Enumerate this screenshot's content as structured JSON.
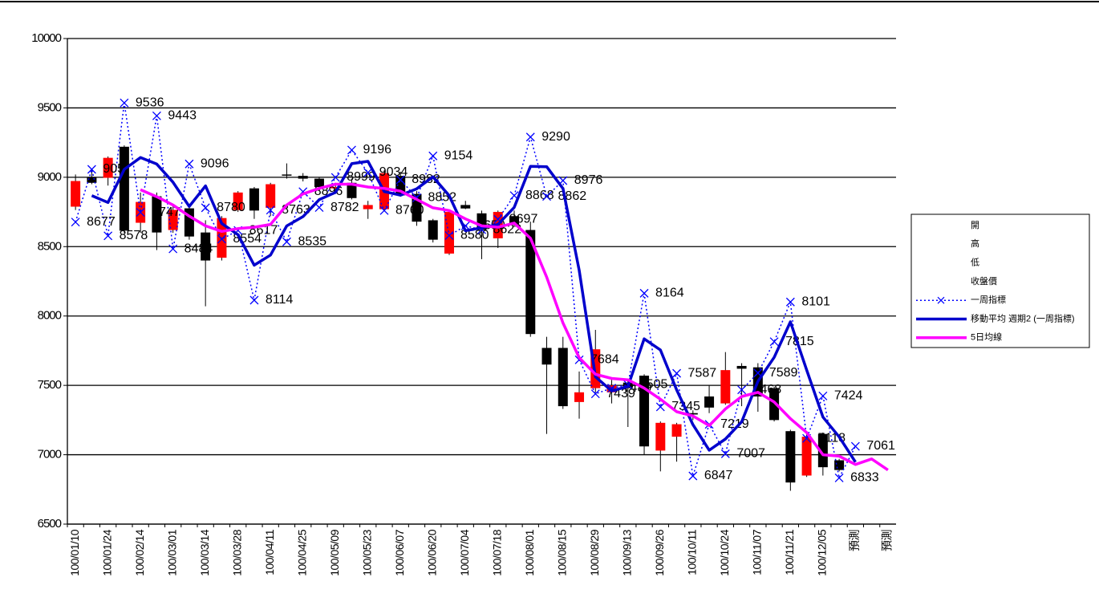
{
  "chart_data": {
    "type": "candlestick",
    "categories": [
      "100/01/10",
      null,
      "100/01/24",
      null,
      "100/02/14",
      null,
      "100/03/01",
      null,
      "100/03/14",
      null,
      "100/03/28",
      null,
      "100/04/11",
      null,
      "100/04/25",
      null,
      "100/05/09",
      null,
      "100/05/23",
      null,
      "100/06/07",
      null,
      "100/06/20",
      null,
      "100/07/04",
      null,
      "100/07/18",
      null,
      "100/08/01",
      null,
      "100/08/15",
      null,
      "100/08/29",
      null,
      "100/09/13",
      null,
      "100/09/26",
      null,
      "100/10/11",
      null,
      "100/10/24",
      null,
      "100/11/07",
      null,
      "100/11/21",
      null,
      "100/12/05",
      null,
      "預測",
      null,
      "預測"
    ],
    "ylim": [
      6500,
      10000
    ],
    "yticks": [
      6500,
      7000,
      7500,
      8000,
      8500,
      9000,
      9500,
      10000
    ],
    "grid": true,
    "legend": "right",
    "up_color": "#ff0000",
    "down_color": "#000000",
    "series": [
      {
        "name": "開",
        "type": "open",
        "values": [
          8788,
          9000,
          8996,
          9220,
          8672,
          8863,
          8620,
          8776,
          8602,
          8420,
          8764,
          8920,
          8780,
          9020,
          9010,
          8990,
          8920,
          8960,
          8770,
          8770,
          9010,
          8880,
          8690,
          8450,
          8800,
          8740,
          8560,
          8720,
          8620,
          7770,
          7770,
          7380,
          7480,
          7450,
          7520,
          7570,
          7030,
          7130,
          7300,
          7420,
          7370,
          7640,
          7630,
          7480,
          7170,
          6850,
          7150,
          6960,
          null,
          null,
          null
        ]
      },
      {
        "name": "高",
        "type": "high",
        "values": [
          9020,
          9060,
          9150,
          9230,
          8890,
          8890,
          8790,
          8790,
          8690,
          8720,
          8900,
          8930,
          8960,
          9100,
          9030,
          9000,
          8960,
          8990,
          8830,
          9050,
          9040,
          8900,
          8700,
          8760,
          8830,
          8760,
          8760,
          8760,
          8680,
          7850,
          7850,
          7600,
          7900,
          7540,
          7540,
          7580,
          7240,
          7230,
          7320,
          7500,
          7740,
          7660,
          7660,
          7490,
          7180,
          7150,
          7160,
          6970,
          null,
          null,
          null
        ]
      },
      {
        "name": "低",
        "type": "low",
        "values": [
          8764,
          8950,
          8940,
          8600,
          8600,
          8475,
          8600,
          8550,
          8070,
          8400,
          8750,
          8700,
          8720,
          8990,
          8970,
          8900,
          8880,
          8840,
          8700,
          8760,
          8860,
          8650,
          8530,
          8440,
          8770,
          8410,
          8490,
          8640,
          7850,
          7150,
          7330,
          7260,
          7450,
          7370,
          7200,
          7000,
          6880,
          6950,
          7250,
          7300,
          7360,
          7350,
          7310,
          7240,
          6740,
          6840,
          6850,
          6880,
          null,
          null,
          null
        ]
      },
      {
        "name": "收盤價",
        "type": "close",
        "values": [
          8973,
          8960,
          9140,
          8615,
          8822,
          8602,
          8765,
          8573,
          8400,
          8706,
          8890,
          8760,
          8950,
          9015,
          8990,
          8930,
          8930,
          8850,
          8800,
          9030,
          8870,
          8680,
          8550,
          8750,
          8775,
          8620,
          8750,
          8660,
          7870,
          7650,
          7350,
          7450,
          7760,
          7500,
          7480,
          7060,
          7230,
          7220,
          7290,
          7340,
          7610,
          7620,
          7420,
          7250,
          6800,
          7130,
          6910,
          6890,
          null,
          null,
          null
        ]
      },
      {
        "name": "一周指標",
        "type": "line",
        "color": "#0000ff",
        "width": 1.5,
        "dash": "dotted",
        "marker": "x",
        "data_labels": true,
        "values": [
          8677,
          9057,
          8578,
          9536,
          8747,
          9443,
          8484,
          9096,
          8780,
          8554,
          8617,
          8114,
          8763,
          8535,
          8896,
          8782,
          8999,
          9196,
          9034,
          8760,
          8982,
          8852,
          9154,
          8580,
          8650,
          8622,
          8697,
          8868,
          9290,
          8862,
          8976,
          7684,
          7439,
          7480,
          7505,
          8164,
          7345,
          7587,
          6847,
          7219,
          7007,
          7468,
          7589,
          7815,
          8101,
          7118,
          7424,
          6833,
          7061,
          null,
          null
        ]
      },
      {
        "name": "移動平均 週期2 (一周指標)",
        "type": "line",
        "color": "#0000cc",
        "width": 3.5,
        "values": [
          null,
          8867,
          8818,
          9057,
          9142,
          9095,
          8964,
          8790,
          8938,
          8667,
          8586,
          8366,
          8439,
          8649,
          8716,
          8839,
          8891,
          9098,
          9115,
          8897,
          8871,
          8917,
          9003,
          8867,
          8615,
          8636,
          8660,
          8783,
          9079,
          9076,
          8919,
          8330,
          7562,
          7460,
          7493,
          7835,
          7755,
          7466,
          7217,
          7033,
          7113,
          7238,
          7529,
          7702,
          7958,
          7610,
          7271,
          7129,
          6947,
          null,
          null
        ]
      },
      {
        "name": "5日均線",
        "type": "line",
        "color": "#ff00ff",
        "width": 3.5,
        "values": [
          null,
          null,
          null,
          null,
          8910,
          8860,
          8800,
          8720,
          8650,
          8610,
          8630,
          8640,
          8660,
          8800,
          8880,
          8920,
          8950,
          8950,
          8930,
          8920,
          8900,
          8840,
          8780,
          8760,
          8700,
          8650,
          8640,
          8670,
          8560,
          8280,
          7950,
          7700,
          7580,
          7550,
          7540,
          7480,
          7400,
          7310,
          7280,
          7210,
          7330,
          7420,
          7450,
          7380,
          7260,
          7160,
          7000,
          6990,
          6930,
          6970,
          6890
        ]
      }
    ]
  }
}
